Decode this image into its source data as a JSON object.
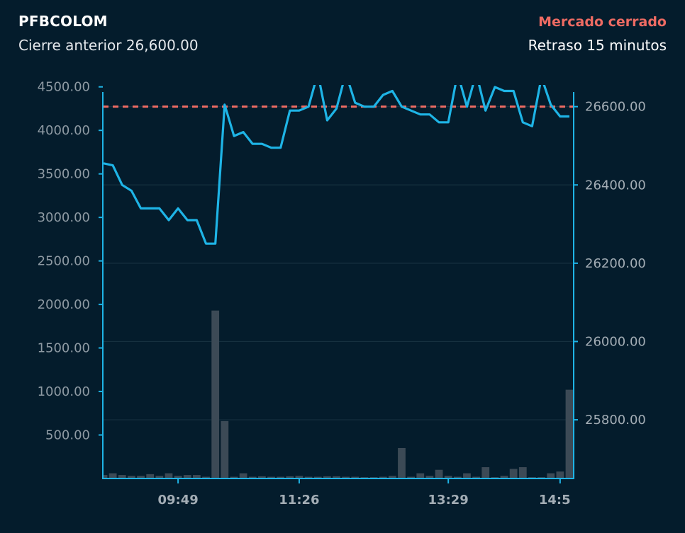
{
  "header": {
    "ticker": "PFBCOLOM",
    "previous_close": "Cierre anterior 26,600.00",
    "market_status": "Mercado cerrado",
    "delay": "Retraso 15 minutos"
  },
  "colors": {
    "background": "#041c2c",
    "price_line": "#1eb4e6",
    "previous_close_line": "#ee6b63",
    "volume_bar": "#3c4a56",
    "axis": "#1eb4e6",
    "grid": "#16303f"
  },
  "chart_data": {
    "type": "line",
    "x_tick_labels": [
      "09:49",
      "11:26",
      "13:29",
      "14:5"
    ],
    "x_tick_positions": [
      8,
      21,
      37,
      49
    ],
    "left_axis": {
      "label": "",
      "ticks": [
        "500.00",
        "1000.00",
        "1500.00",
        "2000.00",
        "2500.00",
        "3000.00",
        "3500.00",
        "4000.00",
        "4500.00"
      ],
      "ylim": [
        0,
        4880
      ]
    },
    "right_axis": {
      "label": "",
      "ticks": [
        "25800.00",
        "26000.00",
        "26200.00",
        "26400.00",
        "26600.00"
      ],
      "ylim": [
        25650,
        26735
      ]
    },
    "previous_close": 26600,
    "grid": true,
    "series": [
      {
        "type": "line",
        "axis": "right",
        "values": [
          26455,
          26450,
          26400,
          26385,
          26340,
          26340,
          26340,
          26310,
          26340,
          26310,
          26310,
          26250,
          26250,
          26605,
          26525,
          26535,
          26505,
          26505,
          26495,
          26495,
          26590,
          26590,
          26600,
          26685,
          26565,
          26595,
          26685,
          26610,
          26600,
          26600,
          26630,
          26640,
          26600,
          26590,
          26580,
          26580,
          26560,
          26560,
          26685,
          26600,
          26685,
          26590,
          26650,
          26640,
          26640,
          26560,
          26550,
          26675,
          26605,
          26575,
          26575
        ]
      },
      {
        "type": "bar",
        "axis": "left",
        "values": [
          40,
          60,
          40,
          30,
          30,
          50,
          30,
          60,
          30,
          40,
          40,
          20,
          1930,
          660,
          20,
          60,
          20,
          25,
          20,
          20,
          25,
          30,
          20,
          20,
          25,
          25,
          20,
          20,
          15,
          15,
          20,
          30,
          350,
          20,
          60,
          30,
          100,
          30,
          20,
          60,
          20,
          130,
          15,
          30,
          110,
          130,
          15,
          15,
          60,
          80,
          1020
        ]
      }
    ]
  }
}
